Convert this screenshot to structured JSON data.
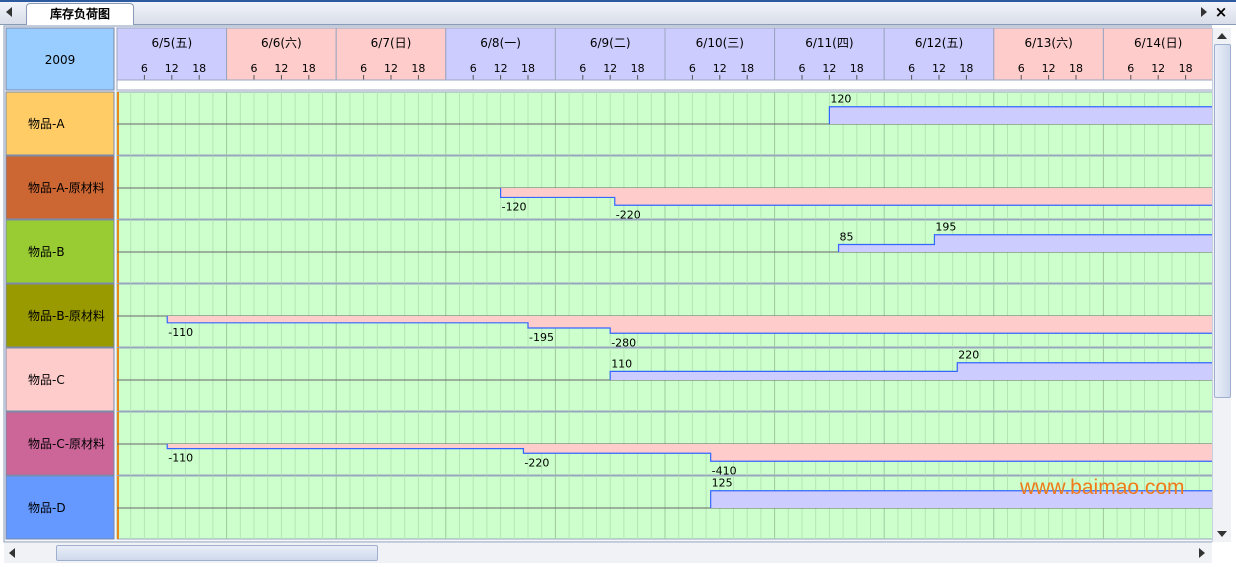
{
  "tab": {
    "title": "库存负荷图"
  },
  "watermark": "www.baimao.com",
  "chart_data": {
    "type": "step-area",
    "year": "2009",
    "x_unit": "hours",
    "start_date": "2009-06-05",
    "days": [
      {
        "label": "6/5(五)",
        "weekend": false
      },
      {
        "label": "6/6(六)",
        "weekend": true
      },
      {
        "label": "6/7(日)",
        "weekend": true
      },
      {
        "label": "6/8(一)",
        "weekend": false
      },
      {
        "label": "6/9(二)",
        "weekend": false
      },
      {
        "label": "6/10(三)",
        "weekend": false
      },
      {
        "label": "6/11(四)",
        "weekend": false
      },
      {
        "label": "6/12(五)",
        "weekend": false
      },
      {
        "label": "6/13(六)",
        "weekend": true
      },
      {
        "label": "6/14(日)",
        "weekend": true
      }
    ],
    "hour_ticks": [
      "6",
      "12",
      "18"
    ],
    "colors": {
      "weekday_header": "#ccccff",
      "weekend_header": "#ffcccc",
      "plot_bg": "#ccffcc",
      "positive_fill": "#ccccff",
      "negative_fill": "#ffcccc",
      "step_line": "#3366ff"
    },
    "rows": [
      {
        "label": "物品-A",
        "color": "#ffcc66",
        "steps": [
          {
            "date": "2009-06-11",
            "hour": 12,
            "value": 120
          }
        ]
      },
      {
        "label": "物品-A-原材料",
        "color": "#cc6633",
        "steps": [
          {
            "date": "2009-06-08",
            "hour": 12,
            "value": -120
          },
          {
            "date": "2009-06-09",
            "hour": 13,
            "value": -220
          }
        ]
      },
      {
        "label": "物品-B",
        "color": "#99cc33",
        "steps": [
          {
            "date": "2009-06-11",
            "hour": 14,
            "value": 85
          },
          {
            "date": "2009-06-12",
            "hour": 11,
            "value": 195
          }
        ]
      },
      {
        "label": "物品-B-原材料",
        "color": "#999900",
        "steps": [
          {
            "date": "2009-06-05",
            "hour": 11,
            "value": -110
          },
          {
            "date": "2009-06-08",
            "hour": 18,
            "value": -195
          },
          {
            "date": "2009-06-09",
            "hour": 12,
            "value": -280
          }
        ]
      },
      {
        "label": "物品-C",
        "color": "#ffcccc",
        "steps": [
          {
            "date": "2009-06-09",
            "hour": 12,
            "value": 110
          },
          {
            "date": "2009-06-12",
            "hour": 16,
            "value": 220
          }
        ]
      },
      {
        "label": "物品-C-原材料",
        "color": "#cc6699",
        "steps": [
          {
            "date": "2009-06-05",
            "hour": 11,
            "value": -110
          },
          {
            "date": "2009-06-08",
            "hour": 17,
            "value": -220
          },
          {
            "date": "2009-06-10",
            "hour": 10,
            "value": -410
          }
        ]
      },
      {
        "label": "物品-D",
        "color": "#6699ff",
        "steps": [
          {
            "date": "2009-06-10",
            "hour": 10,
            "value": 125
          }
        ]
      }
    ]
  }
}
